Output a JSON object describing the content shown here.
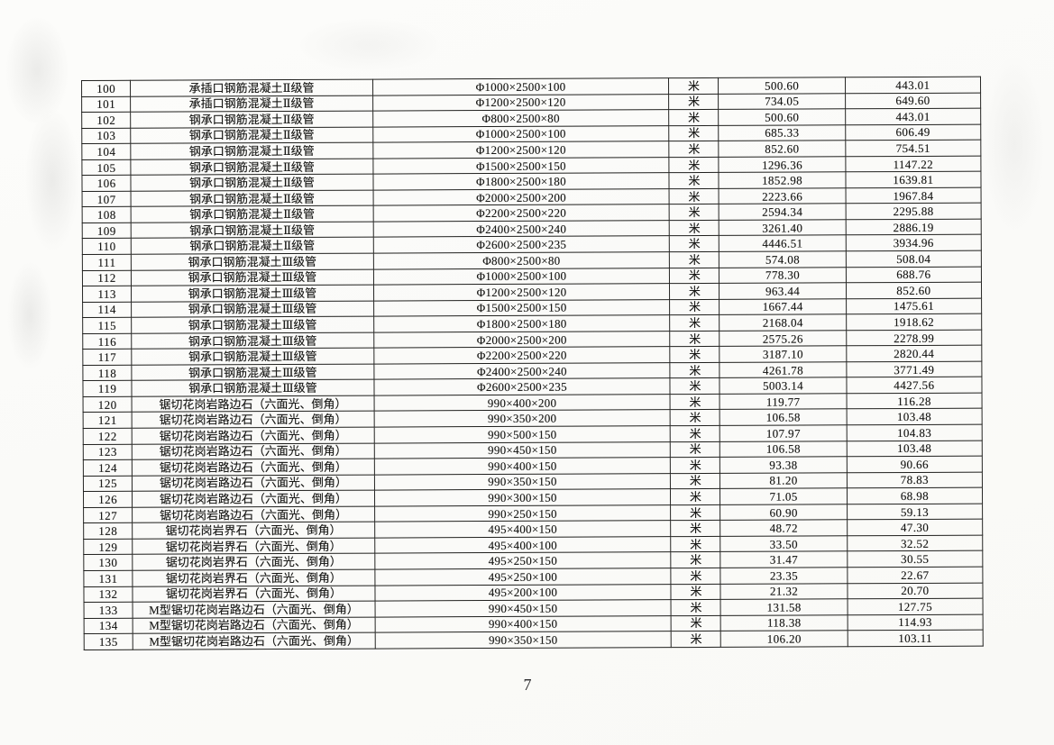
{
  "page": {
    "number": "7"
  },
  "table": {
    "unit_label": "米",
    "rows": [
      {
        "no": "100",
        "name": "承插口钢筋混凝土Ⅱ级管",
        "spec": "Φ1000×2500×100",
        "unit": "米",
        "price1": "500.60",
        "price2": "443.01"
      },
      {
        "no": "101",
        "name": "承插口钢筋混凝土Ⅱ级管",
        "spec": "Φ1200×2500×120",
        "unit": "米",
        "price1": "734.05",
        "price2": "649.60"
      },
      {
        "no": "102",
        "name": "钢承口钢筋混凝土Ⅱ级管",
        "spec": "Φ800×2500×80",
        "unit": "米",
        "price1": "500.60",
        "price2": "443.01"
      },
      {
        "no": "103",
        "name": "钢承口钢筋混凝土Ⅱ级管",
        "spec": "Φ1000×2500×100",
        "unit": "米",
        "price1": "685.33",
        "price2": "606.49"
      },
      {
        "no": "104",
        "name": "钢承口钢筋混凝土Ⅱ级管",
        "spec": "Φ1200×2500×120",
        "unit": "米",
        "price1": "852.60",
        "price2": "754.51"
      },
      {
        "no": "105",
        "name": "钢承口钢筋混凝土Ⅱ级管",
        "spec": "Φ1500×2500×150",
        "unit": "米",
        "price1": "1296.36",
        "price2": "1147.22"
      },
      {
        "no": "106",
        "name": "钢承口钢筋混凝土Ⅱ级管",
        "spec": "Φ1800×2500×180",
        "unit": "米",
        "price1": "1852.98",
        "price2": "1639.81"
      },
      {
        "no": "107",
        "name": "钢承口钢筋混凝土Ⅱ级管",
        "spec": "Φ2000×2500×200",
        "unit": "米",
        "price1": "2223.66",
        "price2": "1967.84"
      },
      {
        "no": "108",
        "name": "钢承口钢筋混凝土Ⅱ级管",
        "spec": "Φ2200×2500×220",
        "unit": "米",
        "price1": "2594.34",
        "price2": "2295.88"
      },
      {
        "no": "109",
        "name": "钢承口钢筋混凝土Ⅱ级管",
        "spec": "Φ2400×2500×240",
        "unit": "米",
        "price1": "3261.40",
        "price2": "2886.19"
      },
      {
        "no": "110",
        "name": "钢承口钢筋混凝土Ⅱ级管",
        "spec": "Φ2600×2500×235",
        "unit": "米",
        "price1": "4446.51",
        "price2": "3934.96"
      },
      {
        "no": "111",
        "name": "钢承口钢筋混凝土Ⅲ级管",
        "spec": "Φ800×2500×80",
        "unit": "米",
        "price1": "574.08",
        "price2": "508.04"
      },
      {
        "no": "112",
        "name": "钢承口钢筋混凝土Ⅲ级管",
        "spec": "Φ1000×2500×100",
        "unit": "米",
        "price1": "778.30",
        "price2": "688.76"
      },
      {
        "no": "113",
        "name": "钢承口钢筋混凝土Ⅲ级管",
        "spec": "Φ1200×2500×120",
        "unit": "米",
        "price1": "963.44",
        "price2": "852.60"
      },
      {
        "no": "114",
        "name": "钢承口钢筋混凝土Ⅲ级管",
        "spec": "Φ1500×2500×150",
        "unit": "米",
        "price1": "1667.44",
        "price2": "1475.61"
      },
      {
        "no": "115",
        "name": "钢承口钢筋混凝土Ⅲ级管",
        "spec": "Φ1800×2500×180",
        "unit": "米",
        "price1": "2168.04",
        "price2": "1918.62"
      },
      {
        "no": "116",
        "name": "钢承口钢筋混凝土Ⅲ级管",
        "spec": "Φ2000×2500×200",
        "unit": "米",
        "price1": "2575.26",
        "price2": "2278.99"
      },
      {
        "no": "117",
        "name": "钢承口钢筋混凝土Ⅲ级管",
        "spec": "Φ2200×2500×220",
        "unit": "米",
        "price1": "3187.10",
        "price2": "2820.44"
      },
      {
        "no": "118",
        "name": "钢承口钢筋混凝土Ⅲ级管",
        "spec": "Φ2400×2500×240",
        "unit": "米",
        "price1": "4261.78",
        "price2": "3771.49"
      },
      {
        "no": "119",
        "name": "钢承口钢筋混凝土Ⅲ级管",
        "spec": "Φ2600×2500×235",
        "unit": "米",
        "price1": "5003.14",
        "price2": "4427.56"
      },
      {
        "no": "120",
        "name": "锯切花岗岩路边石（六面光、倒角）",
        "spec": "990×400×200",
        "unit": "米",
        "price1": "119.77",
        "price2": "116.28"
      },
      {
        "no": "121",
        "name": "锯切花岗岩路边石（六面光、倒角）",
        "spec": "990×350×200",
        "unit": "米",
        "price1": "106.58",
        "price2": "103.48"
      },
      {
        "no": "122",
        "name": "锯切花岗岩路边石（六面光、倒角）",
        "spec": "990×500×150",
        "unit": "米",
        "price1": "107.97",
        "price2": "104.83"
      },
      {
        "no": "123",
        "name": "锯切花岗岩路边石（六面光、倒角）",
        "spec": "990×450×150",
        "unit": "米",
        "price1": "106.58",
        "price2": "103.48"
      },
      {
        "no": "124",
        "name": "锯切花岗岩路边石（六面光、倒角）",
        "spec": "990×400×150",
        "unit": "米",
        "price1": "93.38",
        "price2": "90.66"
      },
      {
        "no": "125",
        "name": "锯切花岗岩路边石（六面光、倒角）",
        "spec": "990×350×150",
        "unit": "米",
        "price1": "81.20",
        "price2": "78.83"
      },
      {
        "no": "126",
        "name": "锯切花岗岩路边石（六面光、倒角）",
        "spec": "990×300×150",
        "unit": "米",
        "price1": "71.05",
        "price2": "68.98"
      },
      {
        "no": "127",
        "name": "锯切花岗岩路边石（六面光、倒角）",
        "spec": "990×250×150",
        "unit": "米",
        "price1": "60.90",
        "price2": "59.13"
      },
      {
        "no": "128",
        "name": "锯切花岗岩界石（六面光、倒角）",
        "spec": "495×400×150",
        "unit": "米",
        "price1": "48.72",
        "price2": "47.30"
      },
      {
        "no": "129",
        "name": "锯切花岗岩界石（六面光、倒角）",
        "spec": "495×400×100",
        "unit": "米",
        "price1": "33.50",
        "price2": "32.52"
      },
      {
        "no": "130",
        "name": "锯切花岗岩界石（六面光、倒角）",
        "spec": "495×250×150",
        "unit": "米",
        "price1": "31.47",
        "price2": "30.55"
      },
      {
        "no": "131",
        "name": "锯切花岗岩界石（六面光、倒角）",
        "spec": "495×250×100",
        "unit": "米",
        "price1": "23.35",
        "price2": "22.67"
      },
      {
        "no": "132",
        "name": "锯切花岗岩界石（六面光、倒角）",
        "spec": "495×200×100",
        "unit": "米",
        "price1": "21.32",
        "price2": "20.70"
      },
      {
        "no": "133",
        "name": "M型锯切花岗岩路边石（六面光、倒角）",
        "spec": "990×450×150",
        "unit": "米",
        "price1": "131.58",
        "price2": "127.75"
      },
      {
        "no": "134",
        "name": "M型锯切花岗岩路边石（六面光、倒角）",
        "spec": "990×400×150",
        "unit": "米",
        "price1": "118.38",
        "price2": "114.93"
      },
      {
        "no": "135",
        "name": "M型锯切花岗岩路边石（六面光、倒角）",
        "spec": "990×350×150",
        "unit": "米",
        "price1": "106.20",
        "price2": "103.11"
      }
    ]
  }
}
